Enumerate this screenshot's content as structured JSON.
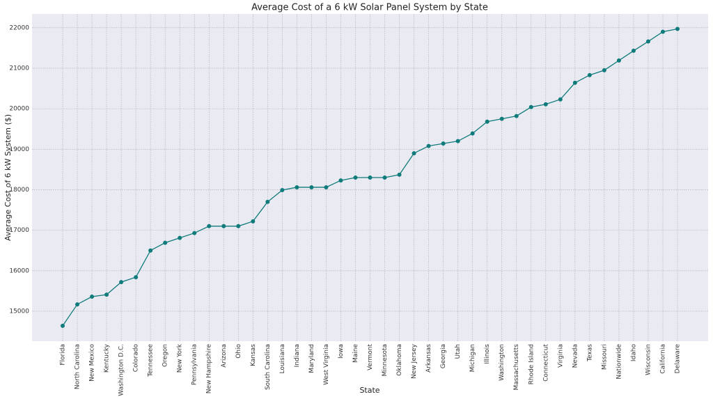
{
  "chart_data": {
    "type": "line",
    "title": "Average Cost of a 6 kW Solar Panel System by State",
    "x_label": "State",
    "y_label": "Average Cost of 6 kW System ($)",
    "categories": [
      "Florida",
      "North Carolina",
      "New Mexico",
      "Kentucky",
      "Washington D.C.",
      "Colorado",
      "Tennessee",
      "Oregon",
      "New York",
      "Pennsylvania",
      "New Hampshire",
      "Arizona",
      "Ohio",
      "Kansas",
      "South Carolina",
      "Louisiana",
      "Indiana",
      "Maryland",
      "West Virginia",
      "Iowa",
      "Maine",
      "Vermont",
      "Minnesota",
      "Oklahoma",
      "New Jersey",
      "Arkansas",
      "Georgia",
      "Utah",
      "Michigan",
      "Illinois",
      "Washington",
      "Massachusetts",
      "Rhode Island",
      "Connecticut",
      "Virginia",
      "Nevada",
      "Texas",
      "Missouri",
      "Nationwide",
      "Idaho",
      "Wisconsin",
      "California",
      "Delaware"
    ],
    "values": [
      14640,
      15170,
      15360,
      15410,
      15720,
      15840,
      16500,
      16690,
      16810,
      16930,
      17100,
      17100,
      17100,
      17220,
      17700,
      17990,
      18060,
      18060,
      18060,
      18230,
      18300,
      18300,
      18300,
      18370,
      18900,
      19080,
      19140,
      19200,
      19390,
      19680,
      19750,
      19820,
      20040,
      20110,
      20230,
      20640,
      20830,
      20950,
      21190,
      21430,
      21660,
      21900,
      21970
    ],
    "color": "#0f7b7b",
    "ylim": [
      14260,
      22340
    ],
    "yticks": [
      15000,
      16000,
      17000,
      18000,
      19000,
      20000,
      21000,
      22000
    ],
    "grid": true
  }
}
